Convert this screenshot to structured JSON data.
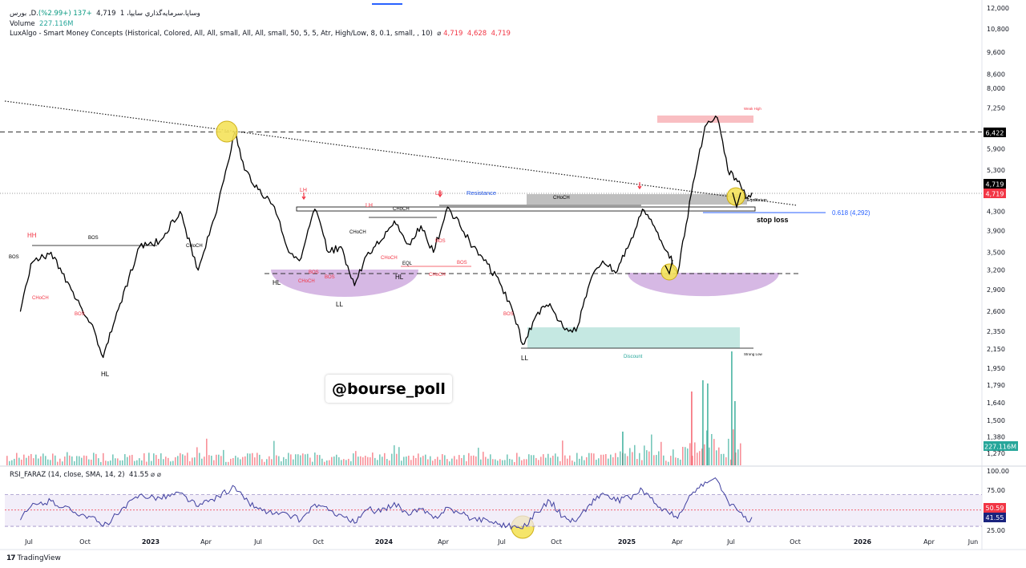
{
  "header": {
    "symbol_line": "بورس ,D.وساپا.سرمايه‌گذاري سايپا، 1",
    "ohlc_last": "4,719",
    "change": "+137 (+2.99%)",
    "volume_label": "Volume",
    "volume_value": "227.116M",
    "indicator": "LuxAlgo - Smart Money Concepts (Historical, Colored, All, All, small, All, All, small, 50, 5, 5, Atr, High/Low, 8, 0.1, small, , 10)",
    "indicator_vals": [
      "4,719",
      "4,628",
      "4,719"
    ],
    "rsi_label": "RSI_FARAZ (14, close, SMA, 14, 2)",
    "rsi_value": "41.55"
  },
  "watermark": "@bourse_poll",
  "brand": "TradingView",
  "colors": {
    "up": "#089981",
    "down": "#f23645",
    "price_line": "#000000",
    "rsi_line": "#3f3f9f",
    "rsi_band": "#ede7f6",
    "premium": "#f7a8ad",
    "discount": "#9fd8cf",
    "equilibrium": "#a9a9a9",
    "bowl": "#c49ad9",
    "highlight": "#f5e35a",
    "fib": "#2962ff"
  },
  "chart_data": [
    {
      "type": "line",
      "name": "price",
      "y_axis": "log",
      "ylim": [
        1230,
        12000
      ],
      "x_ticks": [
        "Jul",
        "Oct",
        "2023",
        "Apr",
        "Jul",
        "Oct",
        "2024",
        "Apr",
        "Jul",
        "Oct",
        "2025",
        "Apr",
        "Jul",
        "Oct",
        "2026",
        "Apr",
        "Jun"
      ],
      "y_ticks": [
        "12,000",
        "10,800",
        "9,600",
        "8,600",
        "8,000",
        "7,250",
        "6,422",
        "5,900",
        "5,300",
        "4,719",
        "4,719",
        "4,300",
        "3,900",
        "3,500",
        "3,200",
        "2,900",
        "2,600",
        "2,350",
        "2,150",
        "1,950",
        "1,790",
        "1,640",
        "1,500",
        "1,380",
        "227.116M",
        "1,270"
      ],
      "y_tick_values": [
        12000,
        10800,
        9600,
        8600,
        8000,
        7250,
        null,
        5900,
        5300,
        null,
        null,
        4300,
        3900,
        3500,
        3200,
        2900,
        2600,
        2350,
        2150,
        1950,
        1790,
        1640,
        1500,
        1380,
        null,
        1270
      ],
      "price_labels": {
        "key_level": "6,422",
        "close": "4,719",
        "close_box": "4,719",
        "volume": "227.116M"
      },
      "x": [
        "2022-06-15",
        "2022-07-01",
        "2022-08-01",
        "2022-09-01",
        "2022-10-01",
        "2022-10-20",
        "2022-11-15",
        "2022-12-15",
        "2023-01-15",
        "2023-02-15",
        "2023-03-15",
        "2023-04-15",
        "2023-05-10",
        "2023-05-25",
        "2023-06-15",
        "2023-07-10",
        "2023-08-01",
        "2023-08-20",
        "2023-09-10",
        "2023-10-01",
        "2023-10-20",
        "2023-11-10",
        "2023-12-01",
        "2023-12-20",
        "2024-01-10",
        "2024-02-01",
        "2024-02-20",
        "2024-03-10",
        "2024-04-01",
        "2024-04-20",
        "2024-05-10",
        "2024-06-01",
        "2024-06-20",
        "2024-07-10",
        "2024-07-25",
        "2024-08-15",
        "2024-09-05",
        "2024-09-25",
        "2024-10-15",
        "2024-11-05",
        "2024-11-25",
        "2024-12-15",
        "2025-01-05",
        "2025-01-25",
        "2025-02-15",
        "2025-03-05",
        "2025-03-20",
        "2025-04-10",
        "2025-05-01",
        "2025-05-20",
        "2025-06-05",
        "2025-06-20",
        "2025-07-05",
        "2025-07-12"
      ],
      "values": [
        2600,
        3300,
        3500,
        2900,
        2450,
        2060,
        2700,
        3600,
        3700,
        4300,
        3200,
        4500,
        6400,
        5300,
        4800,
        4400,
        3500,
        3400,
        4350,
        3500,
        3600,
        2960,
        3500,
        3700,
        4100,
        3650,
        4000,
        3500,
        4400,
        4000,
        3600,
        3300,
        3000,
        2600,
        2200,
        2550,
        2700,
        2400,
        2350,
        3000,
        3350,
        3150,
        3650,
        4350,
        3900,
        3500,
        3150,
        4700,
        6600,
        6900,
        5300,
        5000,
        4600,
        4719
      ],
      "annotations": [
        {
          "text": "HH",
          "kind": "swing",
          "color": "red"
        },
        {
          "text": "HL",
          "kind": "swing",
          "color": "black"
        },
        {
          "text": "BOS",
          "kind": "structure",
          "color": "black"
        },
        {
          "text": "CHoCH",
          "kind": "structure",
          "color": "black"
        },
        {
          "text": "LH",
          "kind": "swing",
          "color": "red"
        },
        {
          "text": "LL",
          "kind": "swing",
          "color": "black"
        },
        {
          "text": "EQL",
          "kind": "structure",
          "color": "black"
        },
        {
          "text": "Resistance",
          "kind": "label",
          "color": "blue"
        },
        {
          "text": "Equilibrium",
          "kind": "zone",
          "color": "black"
        },
        {
          "text": "Weak High",
          "kind": "zone",
          "color": "red"
        },
        {
          "text": "Discount",
          "kind": "zone",
          "color": "teal"
        },
        {
          "text": "Strong Low",
          "kind": "zone",
          "color": "black"
        },
        {
          "text": "stop loss",
          "kind": "label",
          "color": "black"
        },
        {
          "text": "0.618 (4,292)",
          "kind": "fib",
          "color": "blue"
        }
      ]
    },
    {
      "type": "line",
      "name": "RSI_FARAZ",
      "ylim": [
        25,
        100
      ],
      "y_ticks": [
        "100.00",
        "75.00",
        "50.59",
        "41.55",
        "25.00"
      ],
      "levels": [
        70,
        50.59,
        30
      ],
      "values": [
        38,
        55,
        62,
        50,
        42,
        30,
        48,
        70,
        66,
        72,
        55,
        68,
        80,
        64,
        52,
        46,
        44,
        38,
        58,
        50,
        45,
        34,
        52,
        48,
        60,
        44,
        52,
        40,
        54,
        46,
        40,
        38,
        33,
        30,
        27,
        48,
        62,
        42,
        36,
        58,
        72,
        62,
        66,
        76,
        58,
        48,
        40,
        70,
        86,
        88,
        62,
        50,
        36,
        41.55
      ]
    }
  ]
}
